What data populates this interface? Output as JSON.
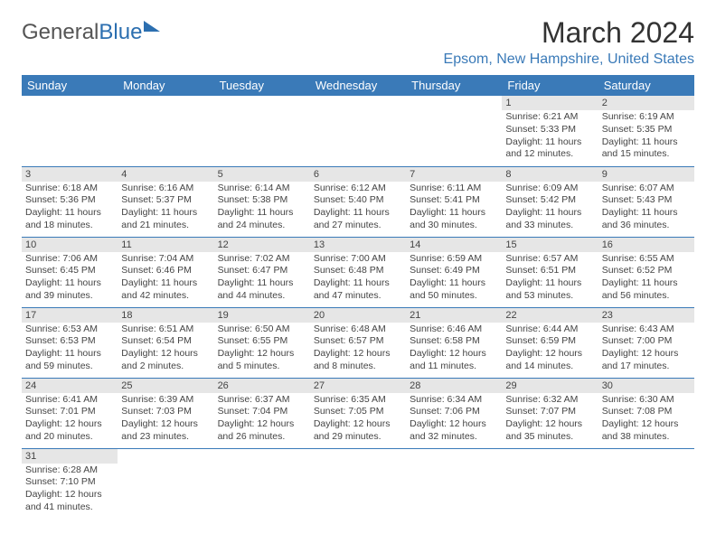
{
  "logo": {
    "part1": "General",
    "part2": "Blue"
  },
  "title": "March 2024",
  "location": "Epsom, New Hampshire, United States",
  "colors": {
    "header_bg": "#3a7ab8",
    "header_text": "#ffffff",
    "daynum_bg": "#e6e6e6",
    "text": "#444444",
    "accent": "#3a7ab8"
  },
  "type": "calendar-table",
  "columns": [
    "Sunday",
    "Monday",
    "Tuesday",
    "Wednesday",
    "Thursday",
    "Friday",
    "Saturday"
  ],
  "weeks": [
    [
      null,
      null,
      null,
      null,
      null,
      {
        "n": "1",
        "sr": "6:21 AM",
        "ss": "5:33 PM",
        "dl": "11 hours and 12 minutes."
      },
      {
        "n": "2",
        "sr": "6:19 AM",
        "ss": "5:35 PM",
        "dl": "11 hours and 15 minutes."
      }
    ],
    [
      {
        "n": "3",
        "sr": "6:18 AM",
        "ss": "5:36 PM",
        "dl": "11 hours and 18 minutes."
      },
      {
        "n": "4",
        "sr": "6:16 AM",
        "ss": "5:37 PM",
        "dl": "11 hours and 21 minutes."
      },
      {
        "n": "5",
        "sr": "6:14 AM",
        "ss": "5:38 PM",
        "dl": "11 hours and 24 minutes."
      },
      {
        "n": "6",
        "sr": "6:12 AM",
        "ss": "5:40 PM",
        "dl": "11 hours and 27 minutes."
      },
      {
        "n": "7",
        "sr": "6:11 AM",
        "ss": "5:41 PM",
        "dl": "11 hours and 30 minutes."
      },
      {
        "n": "8",
        "sr": "6:09 AM",
        "ss": "5:42 PM",
        "dl": "11 hours and 33 minutes."
      },
      {
        "n": "9",
        "sr": "6:07 AM",
        "ss": "5:43 PM",
        "dl": "11 hours and 36 minutes."
      }
    ],
    [
      {
        "n": "10",
        "sr": "7:06 AM",
        "ss": "6:45 PM",
        "dl": "11 hours and 39 minutes."
      },
      {
        "n": "11",
        "sr": "7:04 AM",
        "ss": "6:46 PM",
        "dl": "11 hours and 42 minutes."
      },
      {
        "n": "12",
        "sr": "7:02 AM",
        "ss": "6:47 PM",
        "dl": "11 hours and 44 minutes."
      },
      {
        "n": "13",
        "sr": "7:00 AM",
        "ss": "6:48 PM",
        "dl": "11 hours and 47 minutes."
      },
      {
        "n": "14",
        "sr": "6:59 AM",
        "ss": "6:49 PM",
        "dl": "11 hours and 50 minutes."
      },
      {
        "n": "15",
        "sr": "6:57 AM",
        "ss": "6:51 PM",
        "dl": "11 hours and 53 minutes."
      },
      {
        "n": "16",
        "sr": "6:55 AM",
        "ss": "6:52 PM",
        "dl": "11 hours and 56 minutes."
      }
    ],
    [
      {
        "n": "17",
        "sr": "6:53 AM",
        "ss": "6:53 PM",
        "dl": "11 hours and 59 minutes."
      },
      {
        "n": "18",
        "sr": "6:51 AM",
        "ss": "6:54 PM",
        "dl": "12 hours and 2 minutes."
      },
      {
        "n": "19",
        "sr": "6:50 AM",
        "ss": "6:55 PM",
        "dl": "12 hours and 5 minutes."
      },
      {
        "n": "20",
        "sr": "6:48 AM",
        "ss": "6:57 PM",
        "dl": "12 hours and 8 minutes."
      },
      {
        "n": "21",
        "sr": "6:46 AM",
        "ss": "6:58 PM",
        "dl": "12 hours and 11 minutes."
      },
      {
        "n": "22",
        "sr": "6:44 AM",
        "ss": "6:59 PM",
        "dl": "12 hours and 14 minutes."
      },
      {
        "n": "23",
        "sr": "6:43 AM",
        "ss": "7:00 PM",
        "dl": "12 hours and 17 minutes."
      }
    ],
    [
      {
        "n": "24",
        "sr": "6:41 AM",
        "ss": "7:01 PM",
        "dl": "12 hours and 20 minutes."
      },
      {
        "n": "25",
        "sr": "6:39 AM",
        "ss": "7:03 PM",
        "dl": "12 hours and 23 minutes."
      },
      {
        "n": "26",
        "sr": "6:37 AM",
        "ss": "7:04 PM",
        "dl": "12 hours and 26 minutes."
      },
      {
        "n": "27",
        "sr": "6:35 AM",
        "ss": "7:05 PM",
        "dl": "12 hours and 29 minutes."
      },
      {
        "n": "28",
        "sr": "6:34 AM",
        "ss": "7:06 PM",
        "dl": "12 hours and 32 minutes."
      },
      {
        "n": "29",
        "sr": "6:32 AM",
        "ss": "7:07 PM",
        "dl": "12 hours and 35 minutes."
      },
      {
        "n": "30",
        "sr": "6:30 AM",
        "ss": "7:08 PM",
        "dl": "12 hours and 38 minutes."
      }
    ],
    [
      {
        "n": "31",
        "sr": "6:28 AM",
        "ss": "7:10 PM",
        "dl": "12 hours and 41 minutes."
      },
      null,
      null,
      null,
      null,
      null,
      null
    ]
  ],
  "labels": {
    "sunrise": "Sunrise:",
    "sunset": "Sunset:",
    "daylight": "Daylight:"
  }
}
